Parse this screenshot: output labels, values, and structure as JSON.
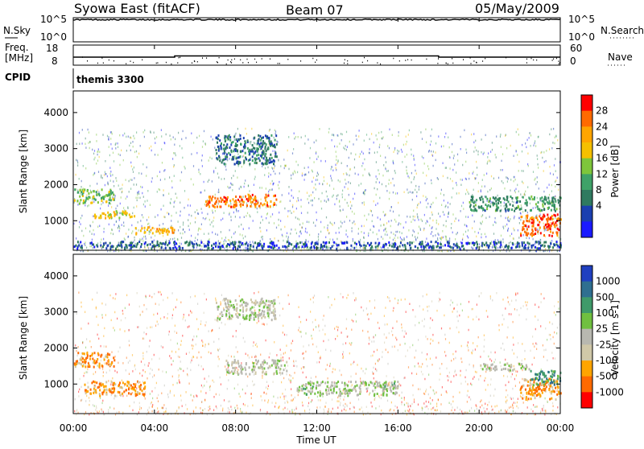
{
  "header": {
    "station": "Syowa East (fitACF)",
    "beam": "Beam 07",
    "date": "05/May/2009"
  },
  "top_panels": {
    "nsky_label": "N.Sky",
    "nsky_ticks": [
      "10^5",
      "10^0"
    ],
    "nsearch_label": "N.Search",
    "nsearch_ticks": [
      "10^5",
      "10^0"
    ],
    "freq_label_1": "Freq.",
    "freq_label_2": "[MHz]",
    "freq_ticks": [
      "18",
      "8"
    ],
    "nave_label": "Nave",
    "nave_ticks": [
      "60",
      "0"
    ],
    "cpid_label": "CPID",
    "cpid_value": "themis 3300"
  },
  "axes": {
    "ylabel": "Slant Range [km]",
    "xlabel": "Time UT",
    "yticks": [
      "4000",
      "3000",
      "2000",
      "1000"
    ],
    "xticks": [
      "00:00",
      "04:00",
      "08:00",
      "12:00",
      "16:00",
      "20:00",
      "00:00"
    ]
  },
  "power_colorbar": {
    "label": "Power [dB]",
    "ticks": [
      "28",
      "24",
      "20",
      "16",
      "12",
      "8",
      "4"
    ],
    "colors": [
      "#ff0000",
      "#ff6a00",
      "#ffa500",
      "#f5c000",
      "#7ec63b",
      "#3fa268",
      "#2f7a60",
      "#1b3fb0",
      "#1a1aff"
    ]
  },
  "velocity_colorbar": {
    "label": "Velocity [m s-1]",
    "ticks": [
      "1000",
      "500",
      "100",
      "25",
      "-25",
      "-100",
      "-500",
      "-1000"
    ],
    "colors": [
      "#2040c0",
      "#2f6f90",
      "#3f9a6a",
      "#70c040",
      "#b8b8b0",
      "#d0c8a8",
      "#ffa500",
      "#ff6a00",
      "#ff0000"
    ]
  },
  "chart_data": [
    {
      "type": "line",
      "title": "N.Sky / N.Search",
      "x": [
        "00:00",
        "24:00"
      ],
      "values_log10": [
        4.6,
        4.6
      ],
      "ylim_log10": [
        0,
        5
      ]
    },
    {
      "type": "line",
      "title": "Freq. [MHz]",
      "x": [
        "00:00",
        "05:00",
        "05:00",
        "18:00",
        "18:00",
        "24:00"
      ],
      "values": [
        12.0,
        12.0,
        12.6,
        12.6,
        12.0,
        12.0
      ],
      "ylim": [
        8,
        18
      ]
    },
    {
      "type": "heatmap",
      "title": "Power [dB]",
      "xlabel": "Time UT",
      "ylabel": "Slant Range [km]",
      "xlim": [
        "00:00",
        "24:00"
      ],
      "ylim": [
        180,
        4600
      ],
      "color_range": [
        0,
        30
      ],
      "regions": [
        {
          "t0": 0.0,
          "t1": 2.0,
          "r0": 1500,
          "r1": 1900,
          "value": 14
        },
        {
          "t0": 1.0,
          "t1": 3.0,
          "r0": 1100,
          "r1": 1300,
          "value": 18
        },
        {
          "t0": 3.0,
          "t1": 5.0,
          "r0": 650,
          "r1": 850,
          "value": 20
        },
        {
          "t0": 6.5,
          "t1": 10.0,
          "r0": 1400,
          "r1": 1750,
          "value": 24
        },
        {
          "t0": 7.0,
          "t1": 10.0,
          "r0": 2600,
          "r1": 3400,
          "value": 8
        },
        {
          "t0": 19.5,
          "t1": 24.0,
          "r0": 1300,
          "r1": 1700,
          "value": 10
        },
        {
          "t0": 22.0,
          "t1": 24.0,
          "r0": 600,
          "r1": 1200,
          "value": 26
        },
        {
          "t0": 0.0,
          "t1": 24.0,
          "r0": 250,
          "r1": 450,
          "value": 6
        }
      ]
    },
    {
      "type": "heatmap",
      "title": "Velocity [m s-1]",
      "xlabel": "Time UT",
      "ylabel": "Slant Range [km]",
      "xlim": [
        "00:00",
        "24:00"
      ],
      "ylim": [
        180,
        4600
      ],
      "color_range": [
        -1000,
        1000
      ],
      "regions": [
        {
          "t0": 0.0,
          "t1": 2.0,
          "r0": 1500,
          "r1": 1900,
          "value": -500
        },
        {
          "t0": 0.5,
          "t1": 3.5,
          "r0": 700,
          "r1": 1100,
          "value": -500
        },
        {
          "t0": 7.0,
          "t1": 10.0,
          "r0": 2800,
          "r1": 3400,
          "value": 0
        },
        {
          "t0": 7.5,
          "t1": 10.5,
          "r0": 1300,
          "r1": 1700,
          "value": 0
        },
        {
          "t0": 11.0,
          "t1": 16.0,
          "r0": 700,
          "r1": 1100,
          "value": 100
        },
        {
          "t0": 20.0,
          "t1": 22.5,
          "r0": 1400,
          "r1": 1600,
          "value": 0
        },
        {
          "t0": 22.0,
          "t1": 24.0,
          "r0": 600,
          "r1": 1200,
          "value": -500
        },
        {
          "t0": 22.5,
          "t1": 24.0,
          "r0": 1000,
          "r1": 1400,
          "value": 500
        }
      ]
    }
  ]
}
